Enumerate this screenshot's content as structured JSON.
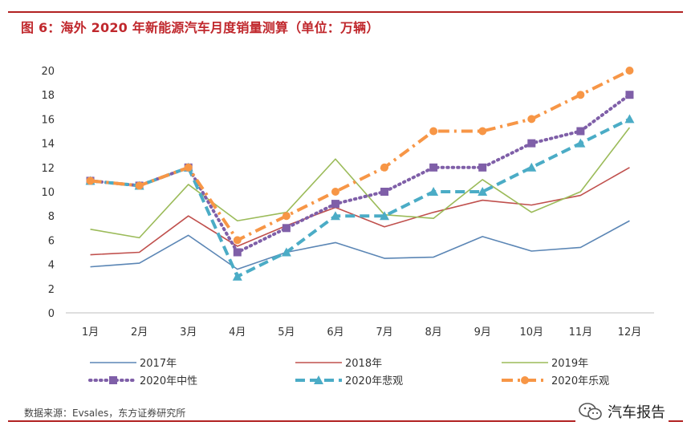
{
  "title": "图 6：海外 2020 年新能源汽车月度销量测算（单位：万辆）",
  "source": "数据来源：Evsales，东方证券研究所",
  "watermark": "汽车报告",
  "watermark_icon": "wechat-icon",
  "chart_data": {
    "type": "line",
    "categories": [
      "1月",
      "2月",
      "3月",
      "4月",
      "5月",
      "6月",
      "7月",
      "8月",
      "9月",
      "10月",
      "11月",
      "12月"
    ],
    "ylim": [
      0,
      20
    ],
    "yticks": [
      0,
      2,
      4,
      6,
      8,
      10,
      12,
      14,
      16,
      18,
      20
    ],
    "grid": false,
    "legend_position": "bottom",
    "series": [
      {
        "name": "2017年",
        "color": "#5b86b5",
        "style": "solid",
        "values": [
          3.8,
          4.1,
          6.4,
          3.6,
          5.0,
          5.8,
          4.5,
          4.6,
          6.3,
          5.1,
          5.4,
          7.6
        ]
      },
      {
        "name": "2018年",
        "color": "#c0504d",
        "style": "solid",
        "values": [
          4.8,
          5.0,
          8.0,
          5.5,
          7.2,
          8.7,
          7.1,
          8.3,
          9.3,
          8.9,
          9.7,
          12.0
        ]
      },
      {
        "name": "2019年",
        "color": "#9bbb59",
        "style": "solid",
        "values": [
          6.9,
          6.2,
          10.6,
          7.6,
          8.3,
          12.7,
          8.1,
          7.8,
          11.0,
          8.3,
          10.0,
          15.3
        ]
      },
      {
        "name": "2020年中性",
        "color": "#7f5fa8",
        "style": "dotted",
        "marker": "square",
        "values": [
          10.9,
          10.5,
          12.0,
          5.0,
          7.0,
          9.0,
          10.0,
          12.0,
          12.0,
          14.0,
          15.0,
          18.0
        ]
      },
      {
        "name": "2020年悲观",
        "color": "#4bacc6",
        "style": "dashed",
        "marker": "triangle",
        "values": [
          10.9,
          10.5,
          12.0,
          3.0,
          5.0,
          8.0,
          8.0,
          10.0,
          10.0,
          12.0,
          14.0,
          16.0
        ]
      },
      {
        "name": "2020年乐观",
        "color": "#f79646",
        "style": "dashdot",
        "marker": "circle",
        "values": [
          10.9,
          10.5,
          12.0,
          6.0,
          8.0,
          10.0,
          12.0,
          15.0,
          15.0,
          16.0,
          18.0,
          20.0
        ]
      }
    ]
  }
}
